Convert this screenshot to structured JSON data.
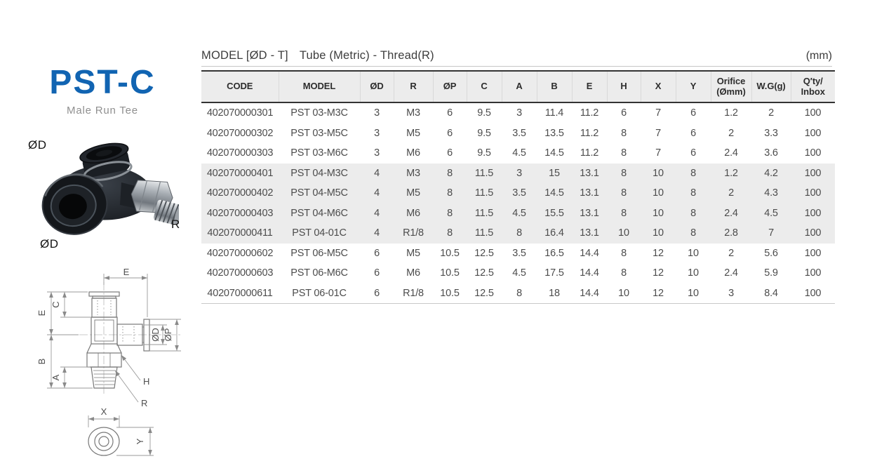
{
  "product": {
    "name": "PST-C",
    "subtitle": "Male Run Tee",
    "photo_labels": {
      "top_port": "ØD",
      "front_port": "ØD",
      "thread": "R"
    }
  },
  "table": {
    "title_model": "MODEL [ØD - T]",
    "title_desc": "Tube (Metric) - Thread(R)",
    "unit": "(mm)",
    "headers": [
      "CODE",
      "MODEL",
      "ØD",
      "R",
      "ØP",
      "C",
      "A",
      "B",
      "E",
      "H",
      "X",
      "Y",
      "Orifice\n(Ømm)",
      "W.G(g)",
      "Q′ty/\nInbox"
    ],
    "rows": [
      {
        "shaded": false,
        "cells": [
          "402070000301",
          "PST 03-M3C",
          "3",
          "M3",
          "6",
          "9.5",
          "3",
          "11.4",
          "11.2",
          "6",
          "7",
          "6",
          "1.2",
          "2",
          "100"
        ]
      },
      {
        "shaded": false,
        "cells": [
          "402070000302",
          "PST 03-M5C",
          "3",
          "M5",
          "6",
          "9.5",
          "3.5",
          "13.5",
          "11.2",
          "8",
          "7",
          "6",
          "2",
          "3.3",
          "100"
        ]
      },
      {
        "shaded": false,
        "cells": [
          "402070000303",
          "PST 03-M6C",
          "3",
          "M6",
          "6",
          "9.5",
          "4.5",
          "14.5",
          "11.2",
          "8",
          "7",
          "6",
          "2.4",
          "3.6",
          "100"
        ]
      },
      {
        "shaded": true,
        "cells": [
          "402070000401",
          "PST 04-M3C",
          "4",
          "M3",
          "8",
          "11.5",
          "3",
          "15",
          "13.1",
          "8",
          "10",
          "8",
          "1.2",
          "4.2",
          "100"
        ]
      },
      {
        "shaded": true,
        "cells": [
          "402070000402",
          "PST 04-M5C",
          "4",
          "M5",
          "8",
          "11.5",
          "3.5",
          "14.5",
          "13.1",
          "8",
          "10",
          "8",
          "2",
          "4.3",
          "100"
        ]
      },
      {
        "shaded": true,
        "cells": [
          "402070000403",
          "PST 04-M6C",
          "4",
          "M6",
          "8",
          "11.5",
          "4.5",
          "15.5",
          "13.1",
          "8",
          "10",
          "8",
          "2.4",
          "4.5",
          "100"
        ]
      },
      {
        "shaded": true,
        "cells": [
          "402070000411",
          "PST 04-01C",
          "4",
          "R1/8",
          "8",
          "11.5",
          "8",
          "16.4",
          "13.1",
          "10",
          "10",
          "8",
          "2.8",
          "7",
          "100"
        ]
      },
      {
        "shaded": false,
        "cells": [
          "402070000602",
          "PST 06-M5C",
          "6",
          "M5",
          "10.5",
          "12.5",
          "3.5",
          "16.5",
          "14.4",
          "8",
          "12",
          "10",
          "2",
          "5.6",
          "100"
        ]
      },
      {
        "shaded": false,
        "cells": [
          "402070000603",
          "PST 06-M6C",
          "6",
          "M6",
          "10.5",
          "12.5",
          "4.5",
          "17.5",
          "14.4",
          "8",
          "12",
          "10",
          "2.4",
          "5.9",
          "100"
        ]
      },
      {
        "shaded": false,
        "cells": [
          "402070000611",
          "PST 06-01C",
          "6",
          "R1/8",
          "10.5",
          "12.5",
          "8",
          "18",
          "14.4",
          "10",
          "12",
          "10",
          "3",
          "8.4",
          "100"
        ]
      }
    ]
  },
  "drawing": {
    "labels": {
      "e_top": "E",
      "e_left": "E",
      "c": "C",
      "b": "B",
      "a": "A",
      "od": "ØD",
      "op": "ØP",
      "h": "H",
      "r": "R",
      "x": "X",
      "y": "Y"
    }
  },
  "colors": {
    "brand_blue": "#1164b2",
    "header_bg": "#ececec",
    "rule_dark": "#333333"
  }
}
